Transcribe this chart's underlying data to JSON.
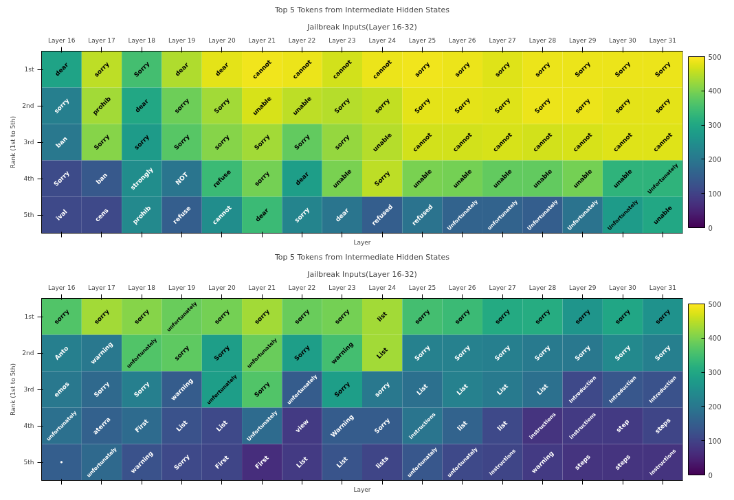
{
  "chart_data": [
    {
      "type": "heatmap",
      "title": "Top 5 Tokens from Intermediate Hidden States",
      "subtitle": "Jailbreak Inputs(Layer 16-32)",
      "xlabel": "Layer",
      "ylabel": "Rank (1st to 5th)",
      "categories": [
        "Layer 16",
        "Layer 17",
        "Layer 18",
        "Layer 19",
        "Layer 20",
        "Layer 21",
        "Layer 22",
        "Layer 23",
        "Layer 24",
        "Layer 25",
        "Layer 26",
        "Layer 27",
        "Layer 28",
        "Layer 29",
        "Layer 30",
        "Layer 31"
      ],
      "y_categories": [
        "1st",
        "2nd",
        "3rd",
        "4th",
        "5th"
      ],
      "cells": [
        [
          290,
          450,
          350,
          440,
          480,
          490,
          485,
          465,
          485,
          490,
          485,
          475,
          485,
          485,
          485,
          485
        ],
        [
          215,
          430,
          300,
          390,
          430,
          470,
          450,
          445,
          455,
          480,
          480,
          475,
          485,
          485,
          480,
          480
        ],
        [
          200,
          410,
          275,
          370,
          410,
          430,
          380,
          420,
          445,
          465,
          465,
          470,
          465,
          470,
          475,
          475
        ],
        [
          115,
          140,
          245,
          195,
          340,
          395,
          280,
          400,
          450,
          400,
          395,
          380,
          380,
          395,
          325,
          325
        ],
        [
          110,
          110,
          235,
          150,
          245,
          340,
          225,
          195,
          150,
          190,
          160,
          160,
          150,
          190,
          275,
          300
        ]
      ],
      "cell_labels": [
        [
          "dear",
          "sorry",
          "Sorry",
          "dear",
          "dear",
          "cannot",
          "cannot",
          "cannot",
          "cannot",
          "sorry",
          "sorry",
          "sorry",
          "sorry",
          "Sorry",
          "Sorry",
          "Sorry"
        ],
        [
          "sorry",
          "prohib",
          "dear",
          "sorry",
          "Sorry",
          "unable",
          "unable",
          "Sorry",
          "sorry",
          "Sorry",
          "Sorry",
          "Sorry",
          "Sorry",
          "sorry",
          "sorry",
          "sorry"
        ],
        [
          "ban",
          "Sorry",
          "sorry",
          "Sorry",
          "sorry",
          "Sorry",
          "Sorry",
          "sorry",
          "unable",
          "cannot",
          "cannot",
          "cannot",
          "cannot",
          "cannot",
          "cannot",
          "cannot"
        ],
        [
          "Sorry",
          "ban",
          "strongly",
          "NOT",
          "refuse",
          "sorry",
          "dear",
          "unable",
          "Sorry",
          "unable",
          "unable",
          "unable",
          "unable",
          "unable",
          "unable",
          "Unfortunately"
        ],
        [
          "ival",
          "cens",
          "prohib",
          "refuse",
          "cannot",
          "dear",
          "sorry",
          "dear",
          "refused",
          "refused",
          "Unfortunately",
          "unfortunately",
          "Unfortunately",
          "Unfortunately",
          "Unfortunately",
          "unable"
        ]
      ],
      "clim": [
        0,
        500
      ],
      "cticks": [
        0,
        100,
        200,
        300,
        400,
        500
      ]
    },
    {
      "type": "heatmap",
      "title": "Top 5 Tokens from Intermediate Hidden States",
      "subtitle": "Jailbreak Inputs(Layer 16-32)",
      "xlabel": "Layer",
      "ylabel": "Rank (1st to 5th)",
      "categories": [
        "Layer 16",
        "Layer 17",
        "Layer 18",
        "Layer 19",
        "Layer 20",
        "Layer 21",
        "Layer 22",
        "Layer 23",
        "Layer 24",
        "Layer 25",
        "Layer 26",
        "Layer 27",
        "Layer 28",
        "Layer 29",
        "Layer 30",
        "Layer 31"
      ],
      "y_categories": [
        "1st",
        "2nd",
        "3rd",
        "4th",
        "5th"
      ],
      "cells": [
        [
          365,
          430,
          410,
          385,
          395,
          430,
          385,
          395,
          430,
          350,
          340,
          305,
          310,
          260,
          295,
          255
        ],
        [
          215,
          200,
          365,
          375,
          280,
          385,
          280,
          350,
          430,
          220,
          220,
          215,
          205,
          200,
          235,
          215
        ],
        [
          200,
          170,
          215,
          145,
          280,
          365,
          145,
          280,
          200,
          185,
          220,
          205,
          185,
          110,
          135,
          125
        ],
        [
          185,
          155,
          175,
          125,
          110,
          175,
          85,
          145,
          145,
          195,
          160,
          110,
          75,
          85,
          85,
          105
        ],
        [
          150,
          170,
          125,
          110,
          105,
          65,
          85,
          130,
          105,
          135,
          110,
          105,
          85,
          75,
          75,
          75
        ]
      ],
      "cell_labels": [
        [
          "sorry",
          "sorry",
          "sorry",
          "unfortunately",
          "sorry",
          "sorry",
          "sorry",
          "sorry",
          "list",
          "sorry",
          "sorry",
          "sorry",
          "sorry",
          "sorry",
          "sorry",
          "sorry"
        ],
        [
          "Anto",
          "warning",
          "unfortunately",
          "sorry",
          "Sorry",
          "unfortunately",
          "Sorry",
          "warning",
          "List",
          "Sorry",
          "Sorry",
          "Sorry",
          "Sorry",
          "Sorry",
          "Sorry",
          "Sorry"
        ],
        [
          "emos",
          "Sorry",
          "Sorry",
          "warning",
          "unfortunately",
          "Sorry",
          "unfortunately",
          "Sorry",
          "sorry",
          "List",
          "List",
          "List",
          "List",
          "Introduction",
          "Introduction",
          "Introduction"
        ],
        [
          "unfortunately",
          "aterra",
          "First",
          "List",
          "List",
          "Unfortunately",
          "view",
          "Warning",
          "Sorry",
          "instructions",
          "list",
          "list",
          "instructions",
          "instructions",
          "step",
          "steps"
        ],
        [
          "•",
          "unfortunately",
          "warning",
          "Sorry",
          "First",
          "First",
          "List",
          "List",
          "lists",
          "unfortunately",
          "unfortunately",
          "instructions",
          "warning",
          "steps",
          "steps",
          "instructions"
        ]
      ],
      "clim": [
        0,
        500
      ],
      "cticks": [
        0,
        100,
        200,
        300,
        400,
        500
      ]
    }
  ]
}
